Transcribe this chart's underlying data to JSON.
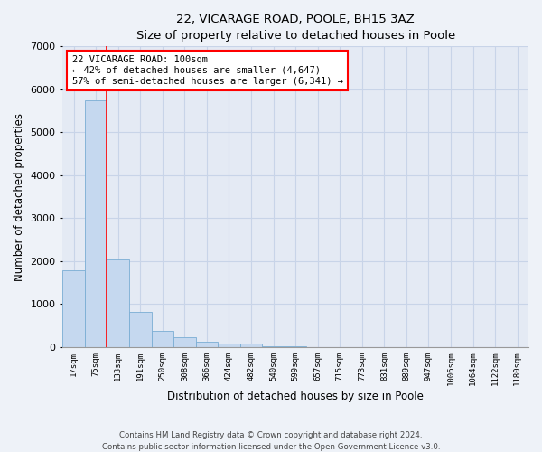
{
  "title1": "22, VICARAGE ROAD, POOLE, BH15 3AZ",
  "title2": "Size of property relative to detached houses in Poole",
  "xlabel": "Distribution of detached houses by size in Poole",
  "ylabel": "Number of detached properties",
  "categories": [
    "17sqm",
    "75sqm",
    "133sqm",
    "191sqm",
    "250sqm",
    "308sqm",
    "366sqm",
    "424sqm",
    "482sqm",
    "540sqm",
    "599sqm",
    "657sqm",
    "715sqm",
    "773sqm",
    "831sqm",
    "889sqm",
    "947sqm",
    "1006sqm",
    "1064sqm",
    "1122sqm",
    "1180sqm"
  ],
  "values": [
    1780,
    5750,
    2050,
    830,
    380,
    240,
    120,
    90,
    75,
    30,
    10,
    5,
    3,
    0,
    0,
    0,
    0,
    0,
    0,
    0,
    0
  ],
  "bar_color": "#c5d8ef",
  "bar_edge_color": "#7aadd4",
  "grid_color": "#c8d4e8",
  "red_line_x": 1.5,
  "annotation_box_text": "22 VICARAGE ROAD: 100sqm\n← 42% of detached houses are smaller (4,647)\n57% of semi-detached houses are larger (6,341) →",
  "ylim": [
    0,
    7000
  ],
  "yticks": [
    0,
    1000,
    2000,
    3000,
    4000,
    5000,
    6000,
    7000
  ],
  "footnote_line1": "Contains HM Land Registry data © Crown copyright and database right 2024.",
  "footnote_line2": "Contains public sector information licensed under the Open Government Licence v3.0.",
  "background_color": "#eef2f8",
  "plot_bg_color": "#e4eaf4"
}
